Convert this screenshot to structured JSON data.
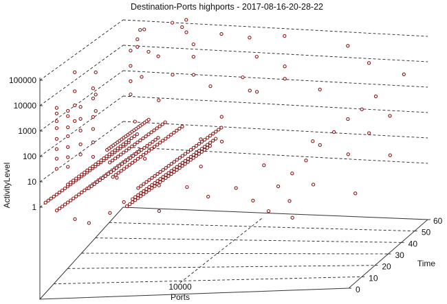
{
  "chart_data": {
    "type": "scatter",
    "projection": "3d",
    "title": "Destination-Ports highports - 2017-08-16-20-28-22",
    "xlabel": "Ports",
    "ylabel": "Time",
    "zlabel": "ActivityLevel",
    "xlim": [
      0,
      22000
    ],
    "ylim": [
      0,
      60
    ],
    "zscale": "log",
    "x_ticks": [
      "10000"
    ],
    "y_ticks": [
      "0",
      "10",
      "20",
      "30",
      "40",
      "50",
      "60"
    ],
    "z_ticks": [
      "1",
      "10",
      "100",
      "1000",
      "10000",
      "100000"
    ],
    "grid": true,
    "marker_color": "#8b1a1a",
    "strands": [
      {
        "port": 400,
        "level": 1.5,
        "t_from": 0,
        "t_to": 60,
        "t_step": 2
      },
      {
        "port": 1200,
        "level": 0.7,
        "t_from": 0,
        "t_to": 60,
        "t_step": 2
      },
      {
        "port": 1000,
        "level": 3,
        "t_from": 10,
        "t_to": 60,
        "t_step": 2
      },
      {
        "port": 2500,
        "level": 2,
        "t_from": 10,
        "t_to": 60,
        "t_step": 2
      },
      {
        "port": 3000,
        "level": 8,
        "t_from": 20,
        "t_to": 60,
        "t_step": 2
      },
      {
        "port": 6200,
        "level": 0.8,
        "t_from": 0,
        "t_to": 60,
        "t_step": 2
      },
      {
        "port": 6600,
        "level": 1.5,
        "t_from": 0,
        "t_to": 60,
        "t_step": 2
      },
      {
        "port": 7000,
        "level": 4,
        "t_from": 0,
        "t_to": 60,
        "t_step": 2
      },
      {
        "port": 5200,
        "level": 12,
        "t_from": 0,
        "t_to": 50,
        "t_step": 2
      },
      {
        "port": 3800,
        "level": 60,
        "t_from": 10,
        "t_to": 40,
        "t_step": 1.5
      }
    ],
    "points": [
      [
        700,
        5,
        5000
      ],
      [
        700,
        5,
        3000
      ],
      [
        700,
        5,
        1500
      ],
      [
        700,
        5,
        800
      ],
      [
        700,
        5,
        300
      ],
      [
        700,
        5,
        120
      ],
      [
        700,
        5,
        50
      ],
      [
        700,
        5,
        20
      ],
      [
        1600,
        4,
        4000
      ],
      [
        1600,
        4,
        2500
      ],
      [
        1600,
        4,
        900
      ],
      [
        1600,
        4,
        400
      ],
      [
        1600,
        4,
        150
      ],
      [
        1600,
        4,
        60
      ],
      [
        1600,
        4,
        25
      ],
      [
        2600,
        3,
        6000
      ],
      [
        2600,
        3,
        2000
      ],
      [
        2600,
        3,
        700
      ],
      [
        2600,
        3,
        200
      ],
      [
        2600,
        3,
        80
      ],
      [
        3000,
        8,
        20000
      ],
      [
        3000,
        8,
        8000
      ],
      [
        3000,
        8,
        1500
      ],
      [
        3000,
        8,
        500
      ],
      [
        3000,
        8,
        150
      ],
      [
        3000,
        8,
        40
      ],
      [
        1000,
        15,
        50000
      ],
      [
        1000,
        15,
        9000
      ],
      [
        1000,
        15,
        2500
      ],
      [
        1000,
        15,
        600
      ],
      [
        2000,
        20,
        30000
      ],
      [
        2000,
        20,
        4000
      ],
      [
        2000,
        20,
        900
      ],
      [
        3500,
        30,
        80000
      ],
      [
        3500,
        30,
        20000
      ],
      [
        3500,
        30,
        5000
      ],
      [
        3500,
        30,
        1500
      ],
      [
        2500,
        45,
        60000
      ],
      [
        2500,
        45,
        30000
      ],
      [
        2800,
        50,
        12000
      ],
      [
        3000,
        55,
        5000
      ],
      [
        3300,
        40,
        3000
      ],
      [
        2000,
        55,
        60000
      ],
      [
        2200,
        50,
        90000
      ],
      [
        4000,
        55,
        100000
      ],
      [
        4400,
        58,
        50000
      ],
      [
        5000,
        55,
        40000
      ],
      [
        4500,
        60,
        80000
      ],
      [
        6000,
        50,
        20000
      ],
      [
        6500,
        45,
        10000
      ],
      [
        7000,
        40,
        3000
      ],
      [
        7500,
        55,
        30000
      ],
      [
        8200,
        40,
        1000
      ],
      [
        5500,
        30,
        800
      ],
      [
        4800,
        20,
        300
      ],
      [
        6000,
        35,
        5000
      ],
      [
        10000,
        50,
        30000
      ],
      [
        11000,
        45,
        8000
      ],
      [
        10500,
        40,
        2000
      ],
      [
        12000,
        55,
        20000
      ],
      [
        13000,
        45,
        3000
      ],
      [
        13500,
        40,
        1500
      ],
      [
        11500,
        35,
        900
      ],
      [
        12500,
        30,
        1200
      ],
      [
        17000,
        50,
        10000
      ],
      [
        19000,
        45,
        3000
      ],
      [
        16000,
        40,
        500
      ],
      [
        20500,
        55,
        400
      ],
      [
        15000,
        20,
        0.5
      ],
      [
        15500,
        25,
        1
      ],
      [
        16000,
        30,
        2
      ],
      [
        16500,
        35,
        5
      ],
      [
        17000,
        40,
        10
      ],
      [
        17500,
        45,
        20
      ],
      [
        18000,
        50,
        30
      ],
      [
        18500,
        55,
        60
      ],
      [
        19000,
        30,
        3
      ],
      [
        19500,
        40,
        8
      ],
      [
        20000,
        50,
        15
      ],
      [
        16800,
        10,
        0.3
      ],
      [
        15800,
        5,
        0.2
      ],
      [
        14000,
        12,
        0.3
      ],
      [
        12000,
        20,
        0.5
      ],
      [
        11000,
        10,
        0.6
      ],
      [
        9000,
        15,
        1
      ],
      [
        8000,
        5,
        0.3
      ],
      [
        13000,
        30,
        1.5
      ],
      [
        21000,
        40,
        1
      ],
      [
        18000,
        15,
        0.8
      ],
      [
        17500,
        5,
        0.1
      ],
      [
        20500,
        20,
        0.2
      ],
      [
        14500,
        50,
        2
      ],
      [
        5000,
        10,
        0.5
      ],
      [
        4500,
        5,
        0.3
      ],
      [
        3500,
        0,
        0.2
      ],
      [
        2500,
        0,
        0.3
      ],
      [
        4000,
        15,
        3
      ],
      [
        5500,
        20,
        10
      ],
      [
        8500,
        30,
        20
      ],
      [
        9500,
        20,
        4
      ],
      [
        7500,
        10,
        2
      ],
      [
        9000,
        40,
        60
      ],
      [
        10000,
        30,
        15
      ]
    ]
  }
}
